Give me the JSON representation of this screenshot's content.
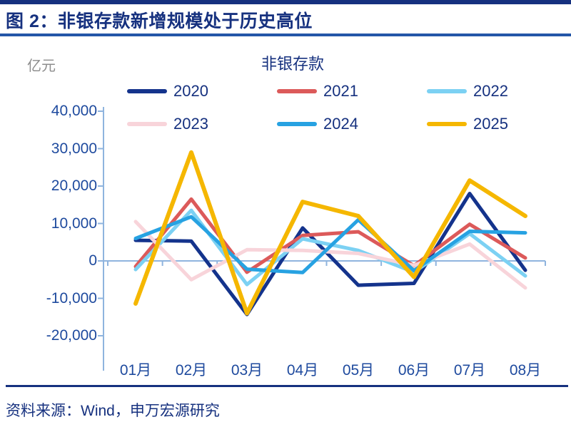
{
  "figure": {
    "title": "图 2：非银存款新增规模处于历史高位",
    "source": "资料来源：Wind，申万宏源研究"
  },
  "chart_data": {
    "type": "line",
    "title": "非银存款",
    "unit_label": "亿元",
    "categories": [
      "01月",
      "02月",
      "03月",
      "04月",
      "05月",
      "06月",
      "07月",
      "08月"
    ],
    "series": [
      {
        "name": "2020",
        "color": "#14338C",
        "values": [
          5500,
          5300,
          -14300,
          8800,
          -6500,
          -6000,
          18000,
          -2500
        ]
      },
      {
        "name": "2021",
        "color": "#DC5A5A",
        "values": [
          -1500,
          16500,
          -3000,
          6800,
          7800,
          -1300,
          9800,
          800
        ]
      },
      {
        "name": "2022",
        "color": "#7CD1F3",
        "values": [
          -2300,
          13500,
          -6300,
          5900,
          2800,
          -3000,
          7300,
          -4000
        ]
      },
      {
        "name": "2023",
        "color": "#F8D4DA",
        "values": [
          10500,
          -5000,
          3000,
          2800,
          2000,
          -1200,
          4500,
          -7200
        ]
      },
      {
        "name": "2024",
        "color": "#27A2E2",
        "values": [
          6000,
          11800,
          -2200,
          -3100,
          11000,
          -2600,
          7900,
          7500
        ]
      },
      {
        "name": "2025",
        "color": "#F5B700",
        "values": [
          -11400,
          29000,
          -14000,
          15800,
          12000,
          -4300,
          21500,
          12000
        ]
      }
    ],
    "ylim": [
      -20000,
      40000
    ],
    "ytick_interval": 10000,
    "ytick_labels": [
      "40,000",
      "30,000",
      "20,000",
      "10,000",
      "0",
      "-10,000",
      "-20,000"
    ],
    "ytick_values": [
      40000,
      30000,
      20000,
      10000,
      0,
      -10000,
      -20000
    ],
    "legend_position": "top",
    "grid": "zero-line-only",
    "axis_color": "#8FB4DE"
  },
  "colors": {
    "accent_navy": "#16317F",
    "title_underline_blue": "#2456A8",
    "axis_label_blue": "#1E4A9E",
    "unit_label_gray": "#8C8C8C"
  }
}
